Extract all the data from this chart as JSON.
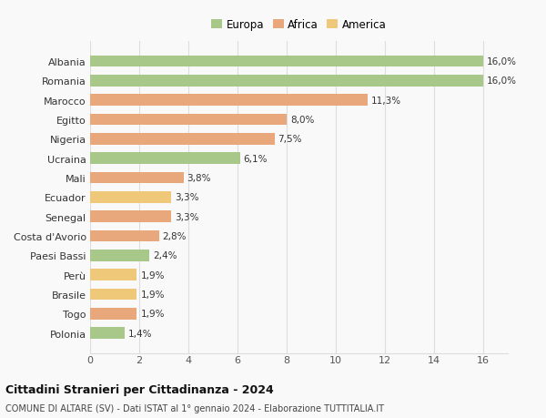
{
  "categories": [
    "Polonia",
    "Togo",
    "Brasile",
    "Perù",
    "Paesi Bassi",
    "Costa d'Avorio",
    "Senegal",
    "Ecuador",
    "Mali",
    "Ucraina",
    "Nigeria",
    "Egitto",
    "Marocco",
    "Romania",
    "Albania"
  ],
  "values": [
    1.4,
    1.9,
    1.9,
    1.9,
    2.4,
    2.8,
    3.3,
    3.3,
    3.8,
    6.1,
    7.5,
    8.0,
    11.3,
    16.0,
    16.0
  ],
  "colors": [
    "#a8c88a",
    "#e8a87c",
    "#f0c87a",
    "#f0c87a",
    "#a8c88a",
    "#e8a87c",
    "#e8a87c",
    "#f0c87a",
    "#e8a87c",
    "#a8c88a",
    "#e8a87c",
    "#e8a87c",
    "#e8a87c",
    "#a8c88a",
    "#a8c88a"
  ],
  "labels": [
    "1,4%",
    "1,9%",
    "1,9%",
    "1,9%",
    "2,4%",
    "2,8%",
    "3,3%",
    "3,3%",
    "3,8%",
    "6,1%",
    "7,5%",
    "8,0%",
    "11,3%",
    "16,0%",
    "16,0%"
  ],
  "legend": [
    {
      "label": "Europa",
      "color": "#a8c88a"
    },
    {
      "label": "Africa",
      "color": "#e8a87c"
    },
    {
      "label": "America",
      "color": "#f0c87a"
    }
  ],
  "xlim": [
    0,
    17
  ],
  "xticks": [
    0,
    2,
    4,
    6,
    8,
    10,
    12,
    14,
    16
  ],
  "title": "Cittadini Stranieri per Cittadinanza - 2024",
  "subtitle": "COMUNE DI ALTARE (SV) - Dati ISTAT al 1° gennaio 2024 - Elaborazione TUTTITALIA.IT",
  "background_color": "#f9f9f9",
  "grid_color": "#dddddd"
}
